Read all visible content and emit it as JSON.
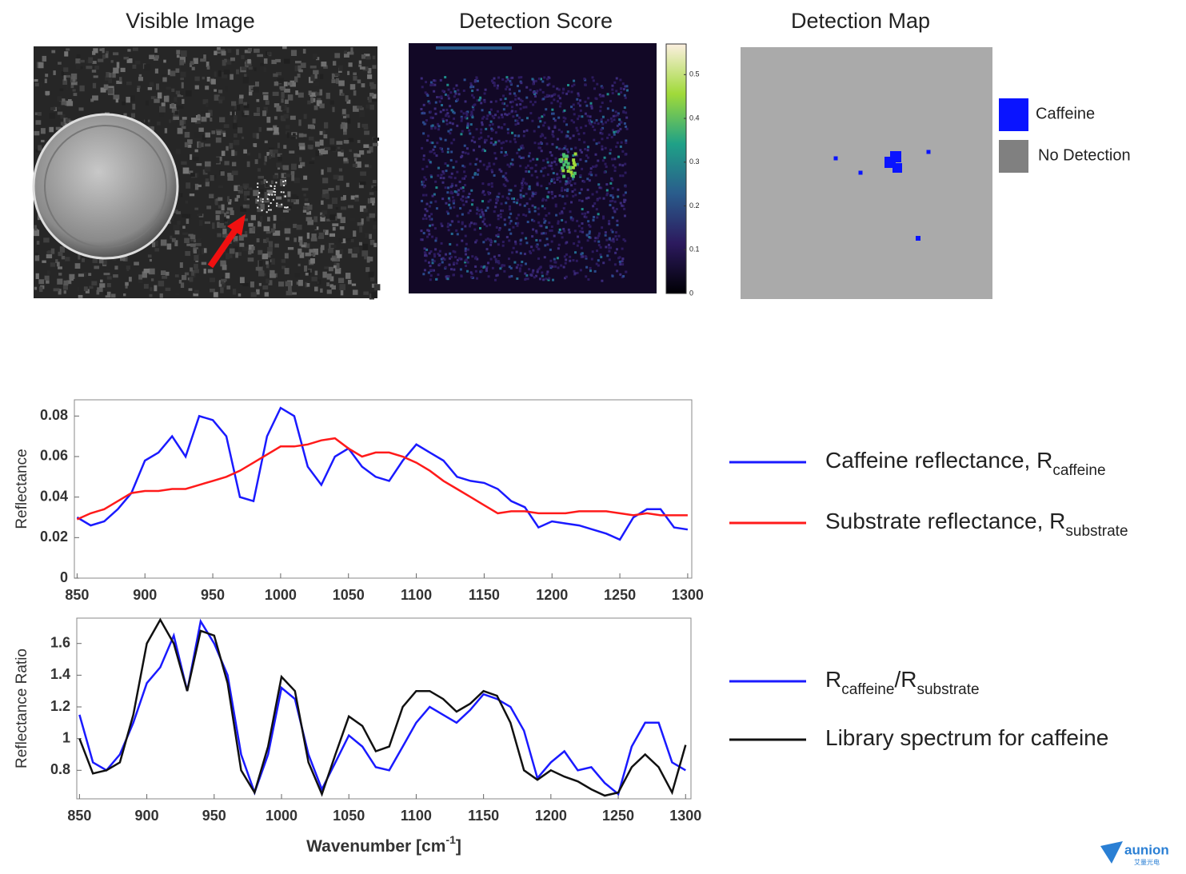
{
  "chart_data": [
    {
      "type": "image",
      "title": "Visible Image"
    },
    {
      "type": "heatmap",
      "title": "Detection Score",
      "clim": [
        0,
        0.57
      ],
      "cticks": [
        0,
        0.1,
        0.2,
        0.3,
        0.4,
        0.5
      ]
    },
    {
      "type": "map",
      "title": "Detection Map",
      "legend": [
        {
          "name": "Caffeine",
          "color": "#0a14ff"
        },
        {
          "name": "No Detection",
          "color": "#808080"
        }
      ]
    },
    {
      "type": "line",
      "ylabel": "Reflectance",
      "xlim": [
        848,
        1303
      ],
      "ylim": [
        0,
        0.088
      ],
      "xticks": [
        850,
        900,
        950,
        1000,
        1050,
        1100,
        1150,
        1200,
        1250,
        1300
      ],
      "yticks": [
        0,
        0.02,
        0.04,
        0.06,
        0.08
      ],
      "x": [
        850,
        860,
        870,
        880,
        890,
        900,
        910,
        920,
        930,
        940,
        950,
        960,
        970,
        980,
        990,
        1000,
        1010,
        1020,
        1030,
        1040,
        1050,
        1060,
        1070,
        1080,
        1090,
        1100,
        1110,
        1120,
        1130,
        1140,
        1150,
        1160,
        1170,
        1180,
        1190,
        1200,
        1210,
        1220,
        1230,
        1240,
        1250,
        1260,
        1270,
        1280,
        1290,
        1300
      ],
      "series": [
        {
          "name_parts": [
            "Caffeine reflectance, R",
            "caffeine"
          ],
          "color": "#1a1aff",
          "values": [
            0.03,
            0.026,
            0.028,
            0.034,
            0.042,
            0.058,
            0.062,
            0.07,
            0.06,
            0.08,
            0.078,
            0.07,
            0.04,
            0.038,
            0.07,
            0.084,
            0.08,
            0.055,
            0.046,
            0.06,
            0.064,
            0.055,
            0.05,
            0.048,
            0.058,
            0.066,
            0.062,
            0.058,
            0.05,
            0.048,
            0.047,
            0.044,
            0.038,
            0.035,
            0.025,
            0.028,
            0.027,
            0.026,
            0.024,
            0.022,
            0.019,
            0.03,
            0.034,
            0.034,
            0.025,
            0.024
          ]
        },
        {
          "name_parts": [
            "Substrate reflectance, R",
            "substrate"
          ],
          "color": "#ff1a1a",
          "values": [
            0.029,
            0.032,
            0.034,
            0.038,
            0.042,
            0.043,
            0.043,
            0.044,
            0.044,
            0.046,
            0.048,
            0.05,
            0.053,
            0.057,
            0.061,
            0.065,
            0.065,
            0.066,
            0.068,
            0.069,
            0.064,
            0.06,
            0.062,
            0.062,
            0.06,
            0.057,
            0.053,
            0.048,
            0.044,
            0.04,
            0.036,
            0.032,
            0.033,
            0.033,
            0.032,
            0.032,
            0.032,
            0.033,
            0.033,
            0.033,
            0.032,
            0.031,
            0.032,
            0.031,
            0.031,
            0.031
          ]
        }
      ]
    },
    {
      "type": "line",
      "ylabel": "Reflectance Ratio",
      "xlabel_parts": [
        "Wavenumber [cm",
        "-1",
        "]"
      ],
      "xlim": [
        848,
        1304
      ],
      "ylim": [
        0.62,
        1.76
      ],
      "xticks": [
        850,
        900,
        950,
        1000,
        1050,
        1100,
        1150,
        1200,
        1250,
        1300
      ],
      "yticks": [
        0.8,
        1,
        1.2,
        1.4,
        1.6
      ],
      "x": [
        850,
        860,
        870,
        880,
        890,
        900,
        910,
        920,
        930,
        940,
        950,
        960,
        970,
        980,
        990,
        1000,
        1010,
        1020,
        1030,
        1040,
        1050,
        1060,
        1070,
        1080,
        1090,
        1100,
        1110,
        1120,
        1130,
        1140,
        1150,
        1160,
        1170,
        1180,
        1190,
        1200,
        1210,
        1220,
        1230,
        1240,
        1250,
        1260,
        1270,
        1280,
        1290,
        1300
      ],
      "series": [
        {
          "name_parts": [
            "R",
            "caffeine",
            "/R",
            "substrate"
          ],
          "color": "#1a1aff",
          "values": [
            1.15,
            0.85,
            0.8,
            0.9,
            1.1,
            1.35,
            1.45,
            1.65,
            1.3,
            1.74,
            1.6,
            1.4,
            0.9,
            0.66,
            0.9,
            1.32,
            1.25,
            0.9,
            0.68,
            0.85,
            1.02,
            0.95,
            0.82,
            0.8,
            0.95,
            1.1,
            1.2,
            1.15,
            1.1,
            1.18,
            1.28,
            1.25,
            1.2,
            1.05,
            0.75,
            0.85,
            0.92,
            0.8,
            0.82,
            0.72,
            0.65,
            0.95,
            1.1,
            1.1,
            0.85,
            0.8
          ]
        },
        {
          "name_parts": [
            "Library spectrum for caffeine"
          ],
          "color": "#111111",
          "values": [
            1.0,
            0.78,
            0.8,
            0.85,
            1.15,
            1.6,
            1.75,
            1.6,
            1.3,
            1.68,
            1.65,
            1.35,
            0.8,
            0.66,
            0.95,
            1.39,
            1.3,
            0.85,
            0.65,
            0.9,
            1.14,
            1.08,
            0.92,
            0.95,
            1.2,
            1.3,
            1.3,
            1.25,
            1.17,
            1.22,
            1.3,
            1.27,
            1.1,
            0.8,
            0.74,
            0.8,
            0.76,
            0.73,
            0.68,
            0.64,
            0.66,
            0.82,
            0.9,
            0.82,
            0.66,
            0.96
          ]
        }
      ]
    }
  ],
  "watermark": {
    "text": "aunion",
    "subtext": "艾量光电"
  }
}
